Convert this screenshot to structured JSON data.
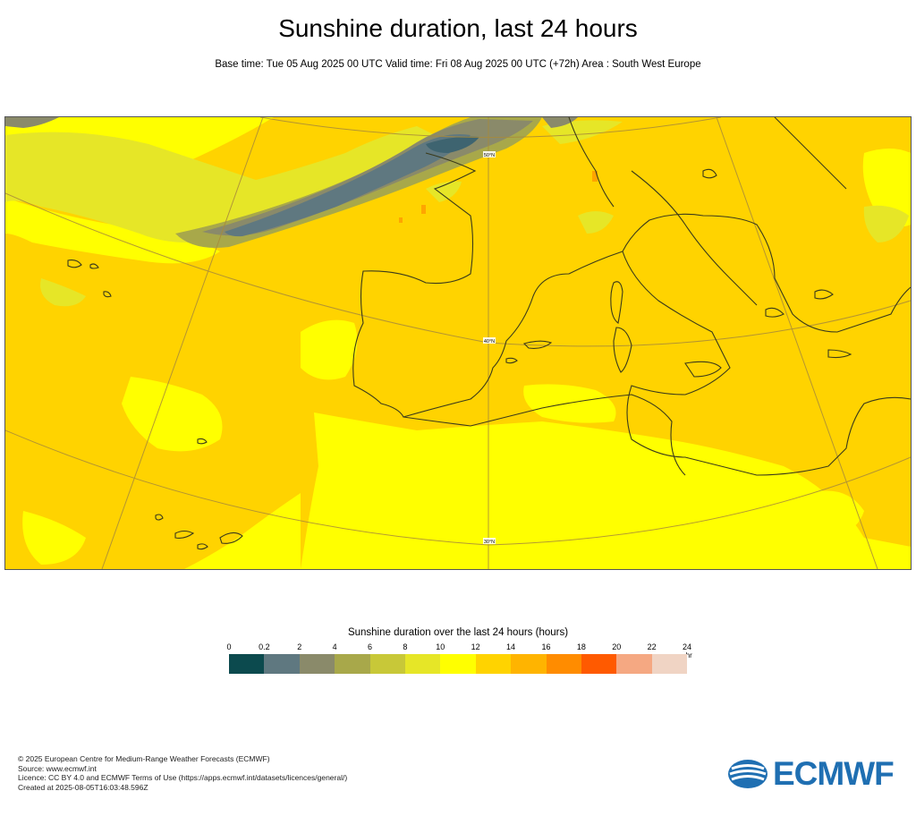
{
  "title": "Sunshine duration, last 24 hours",
  "subtitle": "Base time: Tue 05 Aug 2025 00 UTC Valid time: Fri 08 Aug 2025 00 UTC (+72h) Area : South West Europe",
  "map": {
    "lat_labels": [
      "50°N",
      "40°N",
      "30°N"
    ],
    "colors": {
      "background": "#ffd300",
      "bright": "#ffff00",
      "lightyellow": "#e6e627",
      "grey1": "#8a8a6a",
      "grey2": "#5f7880",
      "darkest": "#0e4249",
      "coast": "#3a3a1a",
      "grid": "#a88a3a",
      "orange": "#ffa500"
    }
  },
  "legend": {
    "title": "Sunshine duration over the last 24 hours (hours)",
    "ticks": [
      "0",
      "0.2",
      "2",
      "4",
      "6",
      "8",
      "10",
      "12",
      "14",
      "16",
      "18",
      "20",
      "22",
      "24"
    ],
    "unit": "-hr",
    "colors": [
      "#0c4a4e",
      "#5f7880",
      "#8a8a6a",
      "#a8a84a",
      "#c8c838",
      "#e6e627",
      "#ffff00",
      "#ffd300",
      "#ffb400",
      "#ff8c00",
      "#ff5a00",
      "#f5a882",
      "#f0d4c4"
    ]
  },
  "footer": {
    "line1": "© 2025 European Centre for Medium-Range Weather Forecasts (ECMWF)",
    "line2": "Source: www.ecmwf.int",
    "line3": "Licence: CC BY 4.0 and ECMWF Terms of Use (https://apps.ecmwf.int/datasets/licences/general/)",
    "line4": "Created at 2025-08-05T16:03:48.596Z"
  },
  "logo": {
    "text": "ECMWF"
  }
}
